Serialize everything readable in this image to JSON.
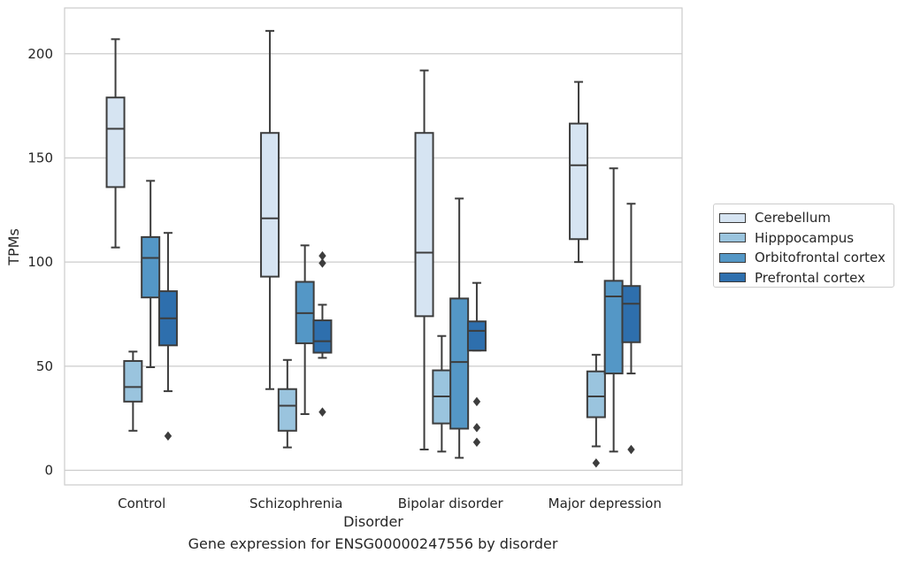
{
  "chart_data": {
    "type": "box",
    "xlabel": "Disorder",
    "ylabel": "TPMs",
    "caption": "Gene expression for ENSG00000247556 by disorder",
    "ylim": [
      -7,
      222
    ],
    "yticks": [
      0,
      50,
      100,
      150,
      200
    ],
    "grid": "horizontal",
    "legend_position": "right",
    "categories": [
      "Control",
      "Schizophrenia",
      "Bipolar disorder",
      "Major depression"
    ],
    "series": [
      {
        "name": "Cerebellum",
        "color": "#d6e4f2",
        "boxes": [
          {
            "whislo": 107,
            "q1": 136,
            "med": 164,
            "q3": 179,
            "whishi": 207,
            "fliers": []
          },
          {
            "whislo": 39,
            "q1": 93,
            "med": 121,
            "q3": 162,
            "whishi": 211,
            "fliers": []
          },
          {
            "whislo": 10,
            "q1": 74,
            "med": 104.5,
            "q3": 162,
            "whishi": 192,
            "fliers": []
          },
          {
            "whislo": 100,
            "q1": 111,
            "med": 146.5,
            "q3": 166.5,
            "whishi": 186.5,
            "fliers": []
          }
        ]
      },
      {
        "name": "Hipppocampus",
        "color": "#9ac4de",
        "boxes": [
          {
            "whislo": 19,
            "q1": 33,
            "med": 40,
            "q3": 52.5,
            "whishi": 57,
            "fliers": []
          },
          {
            "whislo": 11,
            "q1": 19,
            "med": 31,
            "q3": 39,
            "whishi": 53,
            "fliers": []
          },
          {
            "whislo": 9,
            "q1": 22.5,
            "med": 35.5,
            "q3": 48,
            "whishi": 64.5,
            "fliers": []
          },
          {
            "whislo": 11.5,
            "q1": 25.5,
            "med": 35.5,
            "q3": 47.5,
            "whishi": 55.5,
            "fliers": [
              3.5
            ]
          }
        ]
      },
      {
        "name": "Orbitofrontal cortex",
        "color": "#5497c6",
        "boxes": [
          {
            "whislo": 49.5,
            "q1": 83,
            "med": 102,
            "q3": 112,
            "whishi": 139,
            "fliers": []
          },
          {
            "whislo": 27,
            "q1": 61,
            "med": 75.5,
            "q3": 90.5,
            "whishi": 108,
            "fliers": []
          },
          {
            "whislo": 6,
            "q1": 20,
            "med": 52,
            "q3": 82.5,
            "whishi": 130.5,
            "fliers": []
          },
          {
            "whislo": 9,
            "q1": 46.5,
            "med": 83.5,
            "q3": 91,
            "whishi": 145,
            "fliers": []
          }
        ]
      },
      {
        "name": "Prefrontal cortex",
        "color": "#2e6fad",
        "boxes": [
          {
            "whislo": 38,
            "q1": 60,
            "med": 73,
            "q3": 86,
            "whishi": 114,
            "fliers": [
              16.5
            ]
          },
          {
            "whislo": 54,
            "q1": 56.5,
            "med": 62,
            "q3": 72,
            "whishi": 79.5,
            "fliers": [
              28,
              99.5,
              103
            ]
          },
          {
            "whislo": 57.5,
            "q1": 57.5,
            "med": 67,
            "q3": 71.5,
            "whishi": 90,
            "fliers": [
              13.5,
              20.5,
              33
            ]
          },
          {
            "whislo": 46.5,
            "q1": 61.5,
            "med": 80,
            "q3": 88.5,
            "whishi": 128,
            "fliers": [
              10
            ]
          }
        ]
      }
    ]
  }
}
